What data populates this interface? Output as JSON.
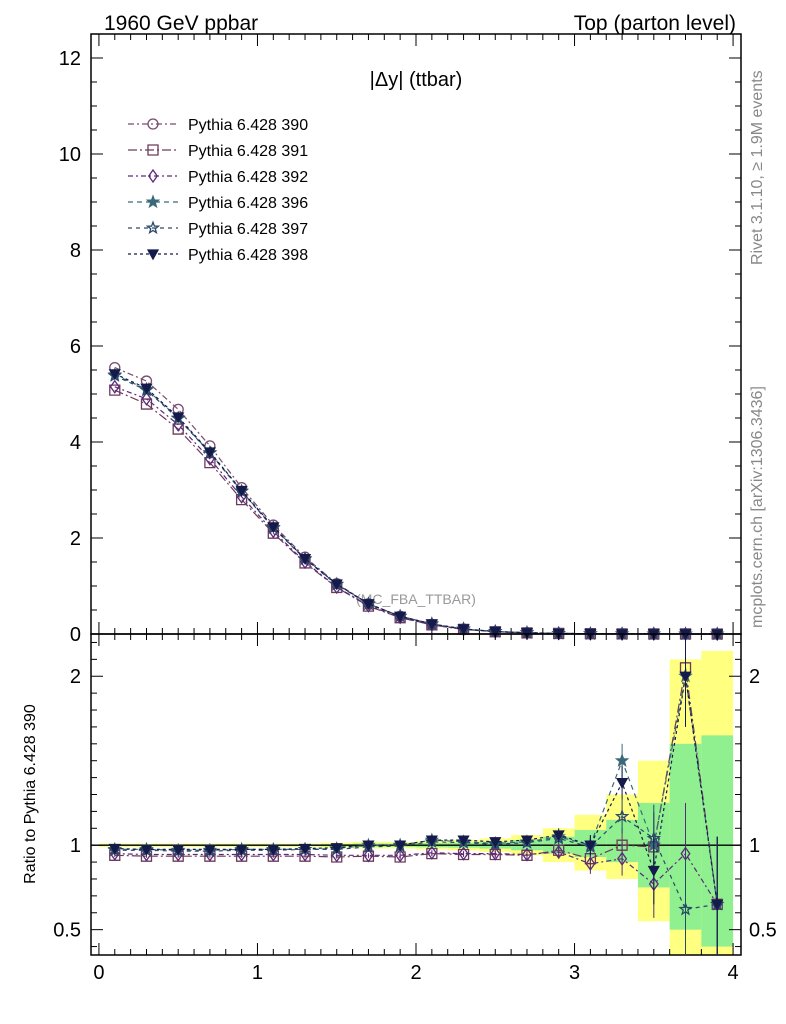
{
  "header": {
    "left": "1960 GeV ppbar",
    "right": "Top (parton level)"
  },
  "side": {
    "rivet": "Rivet 3.1.10, ≥ 1.9M events",
    "mcplots": "mcplots.cern.ch [arXiv:1306.3436]"
  },
  "chart_data": [
    {
      "type": "line",
      "title": "|Δy| (ttbar)",
      "watermark": "(MC_FBA_TTBAR)",
      "xlim": [
        -0.05,
        4.05
      ],
      "ylim": [
        0,
        12.5
      ],
      "xticks": [
        0,
        1,
        2,
        3,
        4
      ],
      "yticks": [
        0,
        2,
        4,
        6,
        8,
        10,
        12
      ],
      "legend_position": "top-left",
      "x": [
        0.1,
        0.3,
        0.5,
        0.7,
        0.9,
        1.1,
        1.3,
        1.5,
        1.7,
        1.9,
        2.1,
        2.3,
        2.5,
        2.7,
        2.9,
        3.1,
        3.3,
        3.5,
        3.7,
        3.9
      ],
      "series": [
        {
          "name": "Pythia 6.428 390",
          "color": "#7a4a6e",
          "marker": "open-circle",
          "dash": "6,3,2,3",
          "values": [
            5.55,
            5.27,
            4.68,
            3.92,
            3.05,
            2.27,
            1.6,
            1.05,
            0.63,
            0.37,
            0.2,
            0.1,
            0.05,
            0.025,
            0.012,
            0.006,
            0.003,
            0.0015,
            0.0008,
            0.0004
          ]
        },
        {
          "name": "Pythia 6.428 391",
          "color": "#6e3a5a",
          "marker": "open-square",
          "dash": "9,3,2,3",
          "values": [
            5.08,
            4.79,
            4.27,
            3.57,
            2.8,
            2.1,
            1.48,
            0.97,
            0.58,
            0.34,
            0.19,
            0.096,
            0.047,
            0.024,
            0.012,
            0.006,
            0.003,
            0.0015,
            0.0008,
            0.0004
          ]
        },
        {
          "name": "Pythia 6.428 392",
          "color": "#5a2a7a",
          "marker": "open-diamond",
          "dash": "5,3,2,3",
          "values": [
            5.15,
            4.9,
            4.36,
            3.65,
            2.86,
            2.14,
            1.5,
            0.98,
            0.59,
            0.35,
            0.19,
            0.097,
            0.047,
            0.024,
            0.012,
            0.006,
            0.003,
            0.0015,
            0.0008,
            0.0004
          ]
        },
        {
          "name": "Pythia 6.428 396",
          "color": "#3a6a7a",
          "marker": "filled-star",
          "dash": "5,4",
          "values": [
            5.4,
            5.1,
            4.5,
            3.78,
            2.98,
            2.22,
            1.57,
            1.04,
            0.63,
            0.37,
            0.21,
            0.105,
            0.052,
            0.026,
            0.013,
            0.006,
            0.003,
            0.0015,
            0.0008,
            0.0004
          ]
        },
        {
          "name": "Pythia 6.428 397",
          "color": "#2a4a6a",
          "marker": "open-star",
          "dash": "4,4",
          "values": [
            5.38,
            5.08,
            4.49,
            3.77,
            2.97,
            2.21,
            1.56,
            1.03,
            0.62,
            0.37,
            0.21,
            0.104,
            0.052,
            0.026,
            0.013,
            0.006,
            0.003,
            0.0015,
            0.0008,
            0.0004
          ]
        },
        {
          "name": "Pythia 6.428 398",
          "color": "#141a4a",
          "marker": "filled-triangle-down",
          "dash": "3,3",
          "values": [
            5.42,
            5.12,
            4.52,
            3.79,
            2.99,
            2.23,
            1.57,
            1.04,
            0.63,
            0.37,
            0.21,
            0.105,
            0.052,
            0.026,
            0.013,
            0.006,
            0.003,
            0.0015,
            0.0008,
            0.0004
          ]
        }
      ]
    },
    {
      "type": "line",
      "ylabel": "Ratio to Pythia 6.428 390",
      "xlim": [
        -0.05,
        4.05
      ],
      "ylim": [
        0.35,
        2.25
      ],
      "xticks": [
        0,
        1,
        2,
        3,
        4
      ],
      "yticks": [
        0.5,
        1,
        2
      ],
      "x": [
        0.1,
        0.3,
        0.5,
        0.7,
        0.9,
        1.1,
        1.3,
        1.5,
        1.7,
        1.9,
        2.1,
        2.3,
        2.5,
        2.7,
        2.9,
        3.1,
        3.3,
        3.5,
        3.7,
        3.9
      ],
      "band_yellow": [
        [
          0.99,
          1.01
        ],
        [
          0.99,
          1.01
        ],
        [
          0.99,
          1.01
        ],
        [
          0.99,
          1.01
        ],
        [
          0.99,
          1.01
        ],
        [
          0.99,
          1.01
        ],
        [
          0.99,
          1.01
        ],
        [
          0.985,
          1.015
        ],
        [
          0.98,
          1.02
        ],
        [
          0.98,
          1.02
        ],
        [
          0.975,
          1.025
        ],
        [
          0.97,
          1.03
        ],
        [
          0.96,
          1.04
        ],
        [
          0.94,
          1.06
        ],
        [
          0.9,
          1.1
        ],
        [
          0.85,
          1.18
        ],
        [
          0.8,
          1.3
        ],
        [
          0.55,
          1.5
        ],
        [
          0.35,
          2.1
        ],
        [
          0.35,
          2.15
        ]
      ],
      "band_green": [
        [
          0.995,
          1.005
        ],
        [
          0.995,
          1.005
        ],
        [
          0.995,
          1.005
        ],
        [
          0.995,
          1.005
        ],
        [
          0.995,
          1.005
        ],
        [
          0.995,
          1.005
        ],
        [
          0.995,
          1.005
        ],
        [
          0.993,
          1.007
        ],
        [
          0.99,
          1.01
        ],
        [
          0.99,
          1.01
        ],
        [
          0.987,
          1.013
        ],
        [
          0.985,
          1.015
        ],
        [
          0.98,
          1.02
        ],
        [
          0.97,
          1.03
        ],
        [
          0.95,
          1.05
        ],
        [
          0.93,
          1.09
        ],
        [
          0.9,
          1.15
        ],
        [
          0.75,
          1.25
        ],
        [
          0.5,
          1.6
        ],
        [
          0.4,
          1.65
        ]
      ],
      "series": [
        {
          "name": "Pythia 6.428 390",
          "values": [
            1,
            1,
            1,
            1,
            1,
            1,
            1,
            1,
            1,
            1,
            1,
            1,
            1,
            1,
            1,
            1,
            1,
            1,
            1,
            1
          ]
        },
        {
          "name": "Pythia 6.428 391",
          "values": [
            0.94,
            0.935,
            0.935,
            0.935,
            0.935,
            0.935,
            0.935,
            0.93,
            0.935,
            0.93,
            0.95,
            0.945,
            0.945,
            0.94,
            0.97,
            0.92,
            1.0,
            0.99,
            2.05,
            0.65
          ],
          "errors": [
            0.01,
            0.01,
            0.01,
            0.01,
            0.01,
            0.01,
            0.01,
            0.01,
            0.012,
            0.015,
            0.015,
            0.015,
            0.02,
            0.025,
            0.04,
            0.06,
            0.1,
            0.2,
            0.3,
            0.4
          ]
        },
        {
          "name": "Pythia 6.428 392",
          "values": [
            0.95,
            0.945,
            0.945,
            0.945,
            0.945,
            0.945,
            0.945,
            0.94,
            0.94,
            0.94,
            0.955,
            0.95,
            0.95,
            0.945,
            0.96,
            0.89,
            0.92,
            0.77,
            0.95,
            0.65
          ],
          "errors": [
            0.01,
            0.01,
            0.01,
            0.01,
            0.01,
            0.01,
            0.01,
            0.01,
            0.012,
            0.015,
            0.015,
            0.015,
            0.02,
            0.025,
            0.04,
            0.06,
            0.1,
            0.2,
            0.3,
            0.4
          ]
        },
        {
          "name": "Pythia 6.428 396",
          "values": [
            0.975,
            0.975,
            0.97,
            0.97,
            0.975,
            0.975,
            0.975,
            0.98,
            1.0,
            1.0,
            1.03,
            1.02,
            1.01,
            1.02,
            1.05,
            1.0,
            1.5,
            1.0,
            2.0,
            0.65
          ],
          "errors": [
            0.01,
            0.01,
            0.01,
            0.01,
            0.01,
            0.01,
            0.01,
            0.01,
            0.012,
            0.015,
            0.015,
            0.015,
            0.02,
            0.025,
            0.04,
            0.06,
            0.1,
            0.2,
            0.3,
            0.4
          ]
        },
        {
          "name": "Pythia 6.428 397",
          "values": [
            0.97,
            0.97,
            0.965,
            0.965,
            0.97,
            0.97,
            0.975,
            0.975,
            0.99,
            0.995,
            1.02,
            1.015,
            1.005,
            1.015,
            1.04,
            0.99,
            1.17,
            1.04,
            0.62,
            0.65
          ],
          "errors": [
            0.01,
            0.01,
            0.01,
            0.01,
            0.01,
            0.01,
            0.01,
            0.01,
            0.012,
            0.015,
            0.015,
            0.015,
            0.02,
            0.025,
            0.04,
            0.06,
            0.1,
            0.2,
            0.3,
            0.4
          ]
        },
        {
          "name": "Pythia 6.428 398",
          "values": [
            0.98,
            0.975,
            0.975,
            0.975,
            0.975,
            0.975,
            0.98,
            0.985,
            1.0,
            1.0,
            1.03,
            1.03,
            1.02,
            1.03,
            1.06,
            1.0,
            1.37,
            0.85,
            2.0,
            0.65
          ],
          "errors": [
            0.01,
            0.01,
            0.01,
            0.01,
            0.01,
            0.01,
            0.01,
            0.01,
            0.012,
            0.015,
            0.015,
            0.015,
            0.02,
            0.025,
            0.04,
            0.06,
            0.1,
            0.2,
            0.3,
            0.4
          ]
        }
      ]
    }
  ]
}
